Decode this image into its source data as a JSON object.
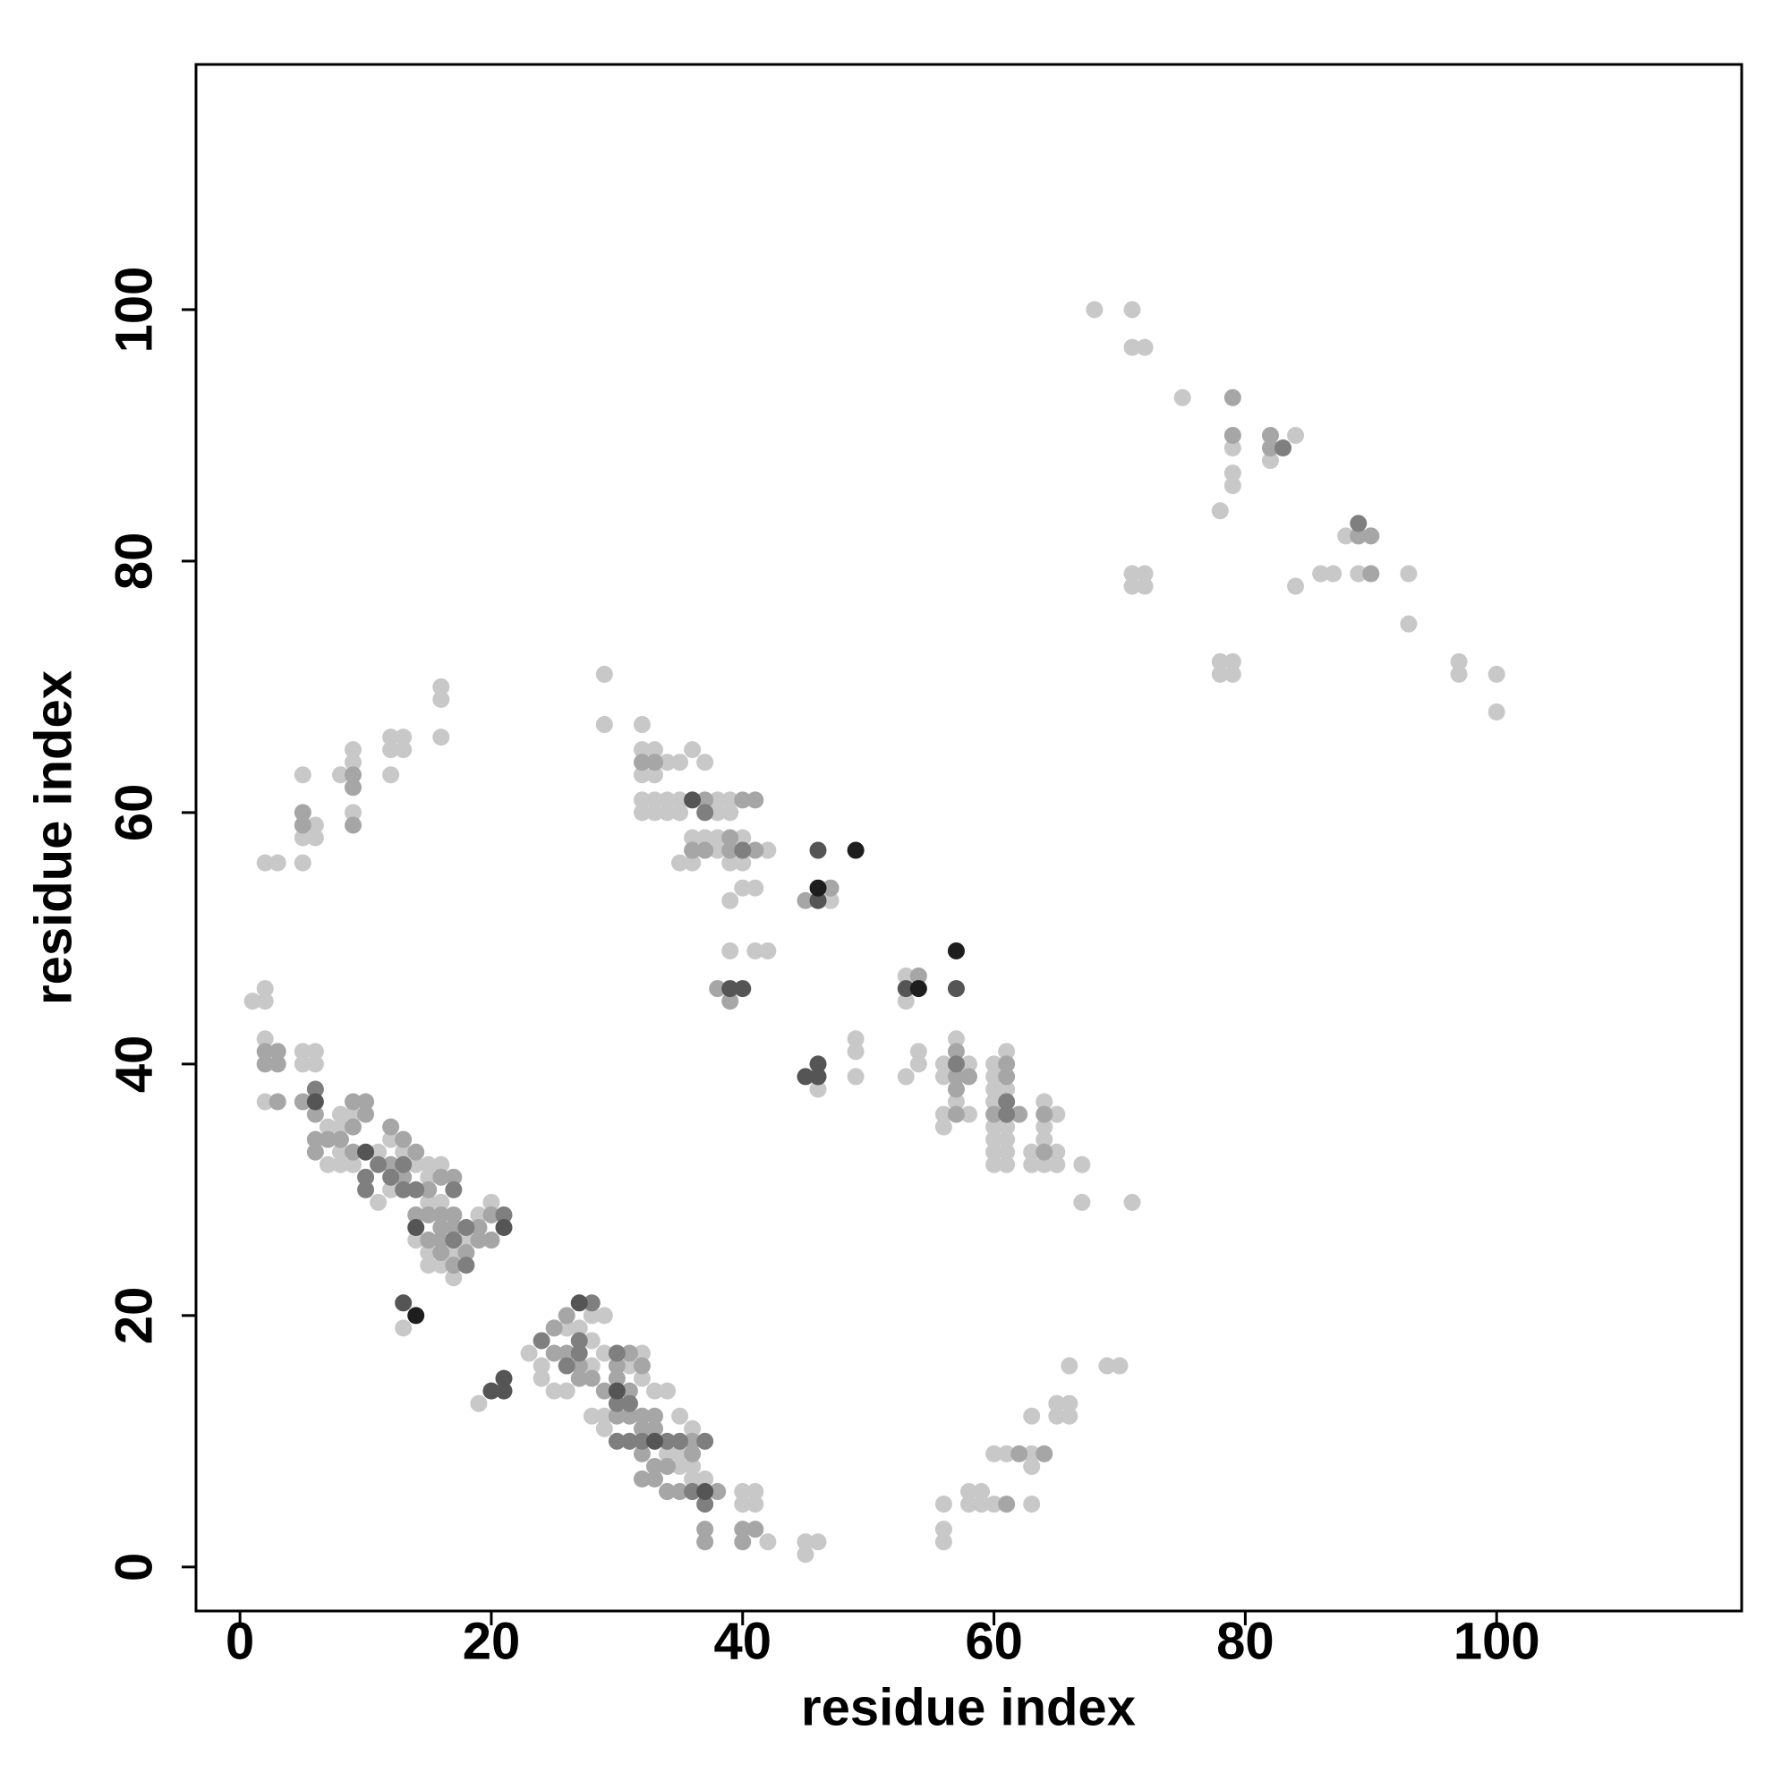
{
  "chart_data": {
    "type": "scatter",
    "x_label": "residue index",
    "y_label": "residue index",
    "xlim": [
      -3.5,
      119.5
    ],
    "ylim": [
      -3.5,
      119.5
    ],
    "xticks": [
      0,
      20,
      40,
      60,
      80,
      100
    ],
    "yticks": [
      0,
      20,
      40,
      60,
      80,
      100
    ],
    "grid": false,
    "series": [
      {
        "color": "#c8c8c8",
        "x": [
          68,
          71,
          71,
          72,
          75,
          79,
          79,
          79,
          78,
          82,
          84,
          88,
          89,
          86,
          87,
          84,
          89,
          93,
          93,
          71,
          72,
          71,
          72,
          78,
          79,
          78,
          79,
          97,
          97,
          100,
          100,
          2,
          3,
          5,
          5,
          5,
          6,
          6,
          8,
          9,
          9,
          9,
          12,
          13,
          12,
          13,
          12,
          16,
          16,
          16,
          1,
          2,
          2,
          29,
          29,
          32,
          32,
          33,
          32,
          33,
          34,
          35,
          36,
          37,
          32,
          33,
          34,
          35,
          32,
          33,
          34,
          35,
          38,
          39,
          38,
          39,
          36,
          37,
          38,
          40,
          35,
          36,
          38,
          39,
          40,
          42,
          40,
          41,
          39,
          39,
          41,
          42,
          47,
          53,
          53,
          46,
          49,
          49,
          49,
          53,
          54,
          54,
          57,
          56,
          58,
          56,
          56,
          56,
          58,
          57,
          60,
          61,
          60,
          60,
          61,
          60,
          61,
          60,
          61,
          60,
          61,
          60,
          61,
          60,
          61,
          64,
          64,
          65,
          64,
          63,
          65,
          63,
          64,
          65,
          67,
          67,
          71,
          2,
          2,
          5,
          6,
          5,
          6,
          8,
          7,
          8,
          9,
          8,
          7,
          8,
          9,
          11,
          11,
          12,
          12,
          13,
          14,
          15,
          15,
          16,
          15,
          16,
          14,
          15,
          15,
          16,
          17,
          17,
          18,
          19,
          20,
          19,
          13,
          19,
          23,
          24,
          24,
          25,
          26,
          26,
          27,
          28,
          29,
          28,
          29,
          28,
          28,
          29,
          29,
          31,
          32,
          32,
          31,
          33,
          34,
          35,
          36,
          34,
          35,
          35,
          36,
          36,
          37,
          40,
          41,
          40,
          41,
          42,
          45,
          46,
          45,
          56,
          56,
          56,
          58,
          59,
          58,
          59,
          60,
          61,
          60,
          63,
          63,
          63,
          63,
          65,
          66,
          65,
          66,
          66,
          69,
          70
        ],
        "y": [
          100,
          100,
          97,
          97,
          93,
          89,
          87,
          86,
          84,
          88,
          90,
          82,
          82,
          79,
          79,
          78,
          79,
          79,
          75,
          79,
          79,
          78,
          78,
          72,
          72,
          71,
          71,
          72,
          71,
          71,
          68,
          56,
          56,
          56,
          63,
          58,
          59,
          58,
          63,
          65,
          64,
          60,
          66,
          66,
          65,
          65,
          63,
          70,
          69,
          66,
          45,
          46,
          45,
          71,
          67,
          67,
          65,
          65,
          63,
          63,
          64,
          64,
          65,
          64,
          61,
          61,
          61,
          61,
          60,
          60,
          60,
          60,
          61,
          61,
          60,
          60,
          58,
          58,
          58,
          58,
          56,
          56,
          57,
          56,
          56,
          57,
          54,
          54,
          53,
          49,
          49,
          49,
          53,
          47,
          45,
          38,
          42,
          41,
          39,
          39,
          41,
          40,
          42,
          40,
          40,
          39,
          36,
          35,
          36,
          37,
          40,
          41,
          39,
          38,
          38,
          37,
          37,
          35,
          35,
          34,
          34,
          33,
          33,
          32,
          32,
          37,
          35,
          36,
          34,
          33,
          33,
          32,
          32,
          32,
          32,
          29,
          29,
          42,
          37,
          41,
          41,
          40,
          40,
          36,
          35,
          35,
          36,
          33,
          32,
          32,
          32,
          33,
          29,
          30,
          34,
          33,
          32,
          31,
          32,
          32,
          29,
          29,
          26,
          25,
          24,
          24,
          25,
          23,
          26,
          28,
          29,
          27,
          19,
          13,
          17,
          16,
          15,
          14,
          14,
          19,
          19,
          20,
          20,
          18,
          17,
          16,
          12,
          12,
          11,
          16,
          17,
          15,
          13,
          14,
          14,
          12,
          11,
          9,
          9,
          8,
          8,
          7,
          7,
          6,
          6,
          5,
          5,
          2,
          2,
          2,
          1,
          5,
          3,
          2,
          6,
          6,
          5,
          5,
          9,
          9,
          5,
          12,
          9,
          8,
          5,
          13,
          13,
          12,
          12,
          16,
          16,
          16
        ]
      },
      {
        "color": "#a6a6a6",
        "x": [
          79,
          79,
          82,
          82,
          90,
          90,
          89,
          5,
          5,
          9,
          9,
          9,
          32,
          33,
          37,
          40,
          41,
          36,
          37,
          39,
          41,
          39,
          38,
          39,
          47,
          45,
          54,
          57,
          57,
          58,
          57,
          57,
          60,
          61,
          61,
          62,
          64,
          64,
          2,
          3,
          2,
          3,
          3,
          5,
          6,
          6,
          7,
          8,
          9,
          10,
          10,
          9,
          6,
          9,
          12,
          12,
          13,
          13,
          14,
          14,
          15,
          16,
          17,
          15,
          16,
          17,
          16,
          17,
          19,
          15,
          16,
          18,
          16,
          19,
          20,
          20,
          17,
          25,
          26,
          25,
          26,
          27,
          27,
          28,
          29,
          30,
          30,
          31,
          32,
          31,
          30,
          31,
          32,
          33,
          32,
          33,
          32,
          33,
          34,
          32,
          33,
          34,
          35,
          36,
          36,
          37,
          37,
          38,
          40,
          41,
          40,
          61,
          62,
          64
        ],
        "y": [
          93,
          90,
          90,
          89,
          82,
          79,
          82,
          60,
          59,
          63,
          62,
          59,
          64,
          64,
          61,
          61,
          61,
          57,
          57,
          57,
          57,
          58,
          46,
          45,
          54,
          53,
          47,
          41,
          39,
          39,
          38,
          36,
          36,
          40,
          39,
          36,
          36,
          33,
          41,
          41,
          40,
          40,
          37,
          37,
          36,
          34,
          34,
          34,
          37,
          37,
          36,
          35,
          33,
          33,
          35,
          32,
          34,
          31,
          33,
          28,
          28,
          28,
          28,
          30,
          31,
          31,
          27,
          27,
          27,
          26,
          26,
          25,
          25,
          26,
          26,
          28,
          24,
          19,
          20,
          17,
          17,
          16,
          15,
          15,
          14,
          16,
          15,
          17,
          16,
          14,
          12,
          12,
          12,
          12,
          11,
          11,
          9,
          8,
          8,
          7,
          7,
          6,
          6,
          9,
          10,
          3,
          2,
          6,
          3,
          3,
          2,
          5,
          9,
          9
        ]
      },
      {
        "color": "#7f7f7f",
        "x": [
          83,
          89,
          37,
          40,
          57,
          61,
          61,
          6,
          11,
          10,
          10,
          12,
          13,
          13,
          14,
          17,
          18,
          18,
          21,
          17,
          24,
          28,
          27,
          27,
          26,
          30,
          30,
          31,
          30,
          31,
          32,
          34,
          35,
          37,
          36,
          37
        ],
        "y": [
          89,
          83,
          60,
          57,
          40,
          36,
          37,
          38,
          32,
          31,
          30,
          31,
          32,
          30,
          30,
          30,
          27,
          24,
          28,
          26,
          18,
          21,
          18,
          17,
          16,
          17,
          13,
          13,
          10,
          10,
          10,
          10,
          10,
          10,
          6,
          5
        ]
      },
      {
        "color": "#555555",
        "x": [
          46,
          46,
          53,
          57,
          46,
          45,
          46,
          39,
          40,
          6,
          10,
          14,
          21,
          13,
          20,
          21,
          21,
          27,
          30,
          33,
          37,
          36
        ],
        "y": [
          57,
          53,
          46,
          46,
          40,
          39,
          39,
          46,
          46,
          37,
          33,
          27,
          27,
          21,
          14,
          15,
          14,
          21,
          14,
          10,
          6,
          61
        ]
      },
      {
        "color": "#1e1e1e",
        "x": [
          49,
          46,
          57,
          54,
          14
        ],
        "y": [
          57,
          54,
          49,
          46,
          20
        ]
      }
    ]
  }
}
